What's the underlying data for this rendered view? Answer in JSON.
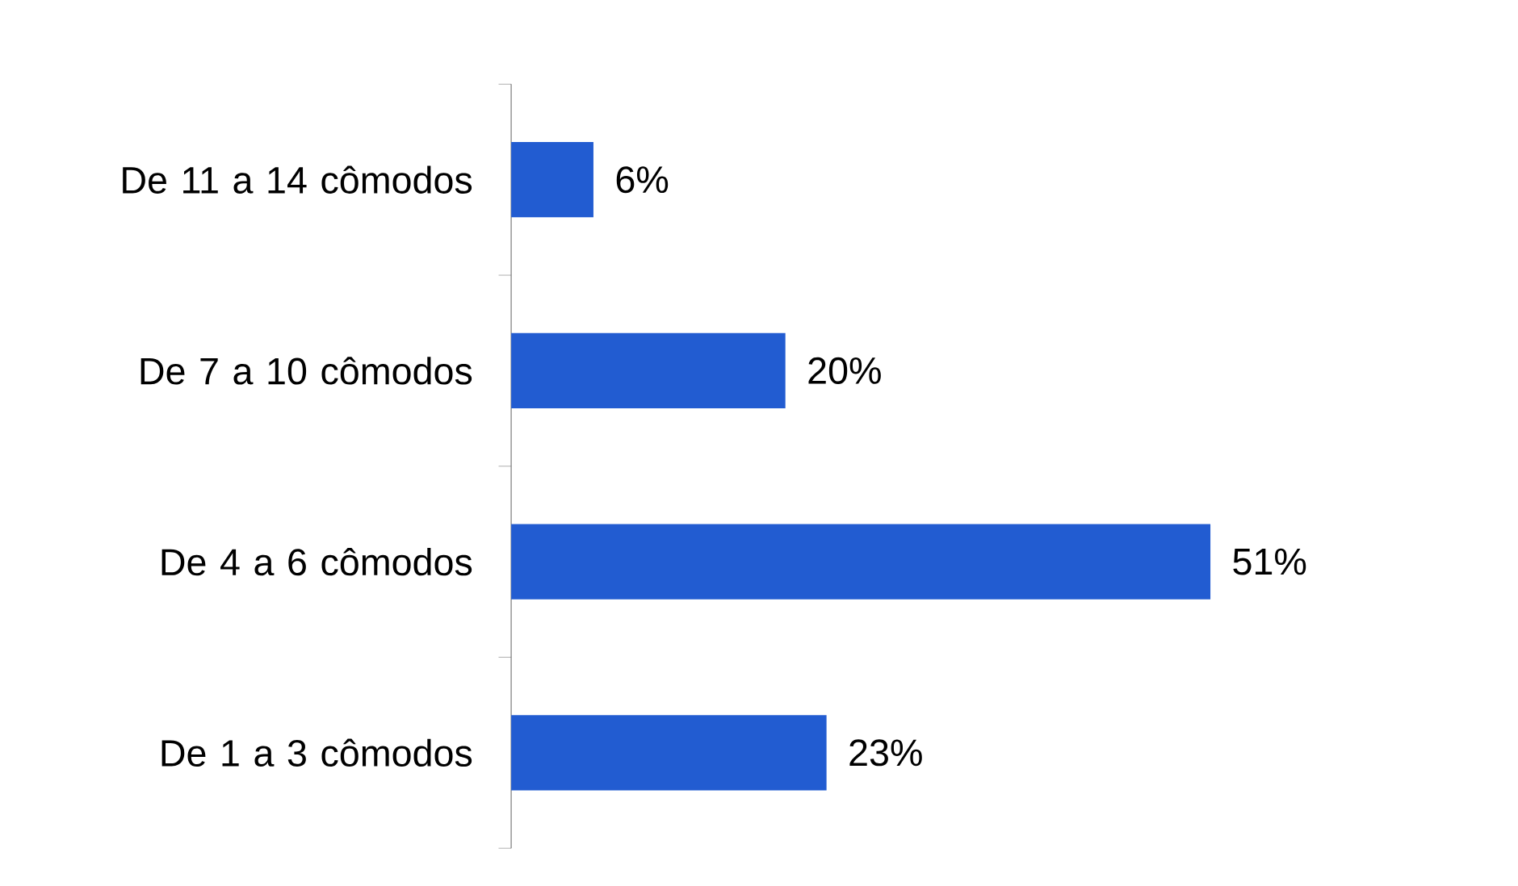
{
  "chart_data": {
    "type": "bar",
    "orientation": "horizontal",
    "categories": [
      "De 11 a 14 cômodos",
      "De 7 a 10 cômodos",
      "De 4 a 6 cômodos",
      "De 1 a 3 cômodos"
    ],
    "values": [
      6,
      20,
      51,
      23
    ],
    "value_labels": [
      "6%",
      "20%",
      "51%",
      "23%"
    ],
    "color": "#225cd1",
    "tick_labels": "y"
  }
}
